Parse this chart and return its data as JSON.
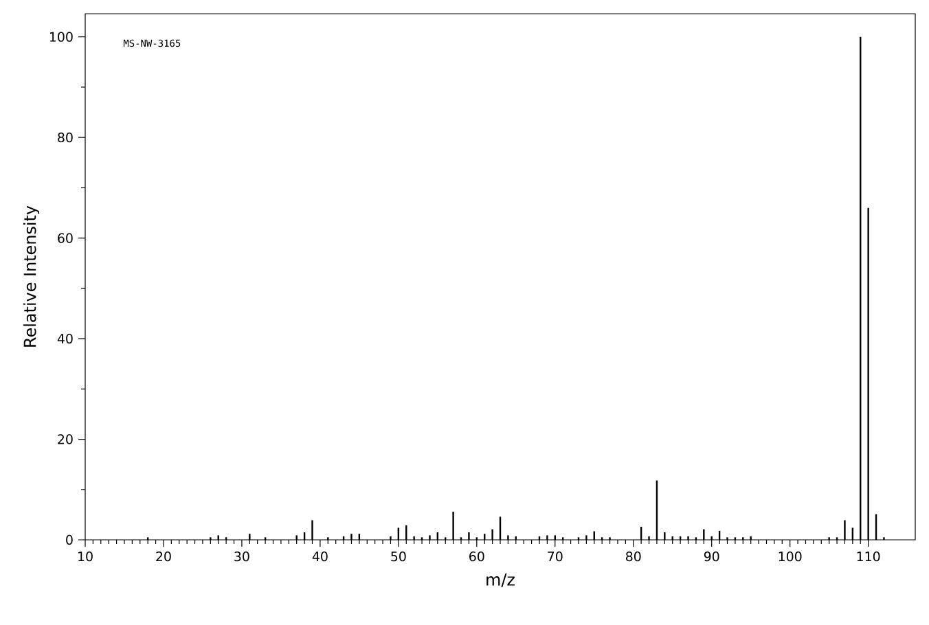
{
  "chart_data": {
    "type": "bar",
    "xlabel": "m/z",
    "ylabel": "Relative Intensity",
    "color": "#000000",
    "annotations": [
      "MS-NW-3165"
    ],
    "x": [
      18,
      26,
      27,
      28,
      31,
      33,
      37,
      38,
      39,
      41,
      43,
      44,
      45,
      49,
      50,
      51,
      52,
      53,
      54,
      55,
      56,
      57,
      58,
      59,
      60,
      61,
      62,
      63,
      64,
      65,
      68,
      69,
      70,
      71,
      73,
      74,
      75,
      76,
      77,
      81,
      82,
      83,
      84,
      85,
      86,
      87,
      88,
      89,
      90,
      91,
      92,
      93,
      94,
      95,
      105,
      106,
      107,
      108,
      109,
      110,
      111,
      112
    ],
    "values": [
      0.5,
      0.5,
      0.9,
      0.5,
      1.2,
      0.5,
      0.9,
      1.5,
      3.9,
      0.5,
      0.7,
      1.2,
      1.2,
      0.7,
      2.4,
      2.9,
      0.7,
      0.5,
      0.9,
      1.5,
      0.5,
      5.6,
      0.5,
      1.5,
      0.5,
      1.2,
      2.1,
      4.6,
      0.9,
      0.7,
      0.7,
      0.9,
      0.9,
      0.5,
      0.5,
      0.9,
      1.7,
      0.5,
      0.5,
      2.6,
      0.7,
      11.8,
      1.5,
      0.7,
      0.7,
      0.7,
      0.5,
      2.1,
      0.7,
      1.8,
      0.5,
      0.5,
      0.5,
      0.7,
      0.5,
      0.5,
      3.9,
      2.4,
      100,
      66,
      5.1,
      0.5
    ],
    "xlim": [
      10,
      116
    ],
    "xticks": [
      10,
      20,
      30,
      40,
      50,
      60,
      70,
      80,
      90,
      100,
      110
    ],
    "ylim": [
      0,
      104.6
    ],
    "yticks": [
      0,
      20,
      40,
      60,
      80,
      100
    ],
    "grid": false
  }
}
